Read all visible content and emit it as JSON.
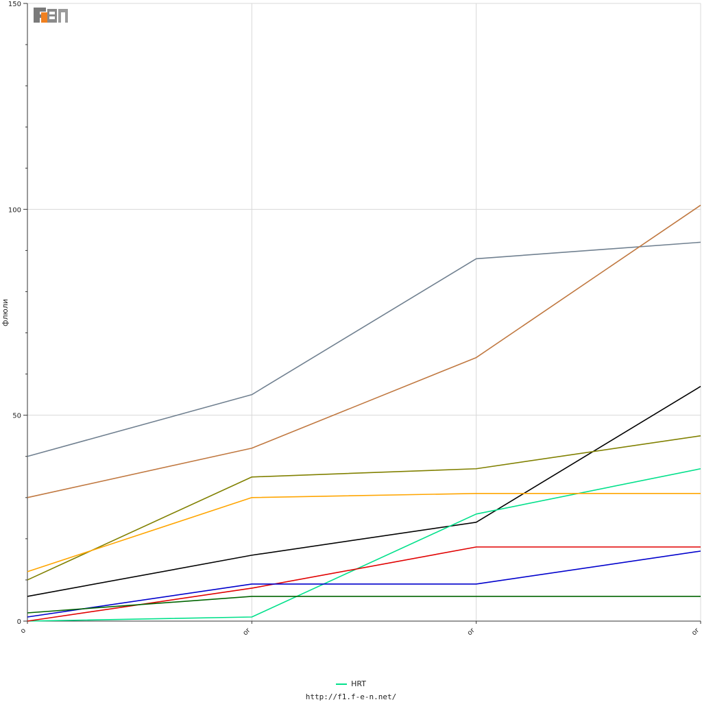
{
  "chart_data": {
    "type": "line",
    "title": "",
    "xlabel": "",
    "ylabel": "флюли",
    "ylim": [
      0,
      150
    ],
    "yticks": [
      0,
      50,
      100,
      150
    ],
    "x_tick_labels": [
      "o",
      "or",
      "or",
      "or"
    ],
    "grid": true,
    "series": [
      {
        "color": "#708090",
        "values": [
          40,
          55,
          88,
          92
        ]
      },
      {
        "color": "#c07840",
        "values": [
          30,
          42,
          64,
          101
        ]
      },
      {
        "color": "#000000",
        "values": [
          6,
          16,
          24,
          57
        ]
      },
      {
        "color": "#808000",
        "values": [
          10,
          35,
          37,
          45
        ]
      },
      {
        "color": "#00e08a",
        "name": "HRT",
        "values": [
          0,
          1,
          26,
          37
        ]
      },
      {
        "color": "#ffa500",
        "values": [
          12,
          30,
          31,
          31
        ]
      },
      {
        "color": "#e00000",
        "values": [
          0,
          8,
          18,
          18
        ]
      },
      {
        "color": "#0000cc",
        "values": [
          1,
          9,
          9,
          17
        ]
      },
      {
        "color": "#006400",
        "values": [
          2,
          6,
          6,
          6
        ]
      }
    ]
  },
  "legend": {
    "label": "HRT",
    "color": "#00e08a"
  },
  "footer": {
    "url": "http://f1.f-e-n.net/"
  },
  "logo": {
    "text": "F1EN"
  }
}
